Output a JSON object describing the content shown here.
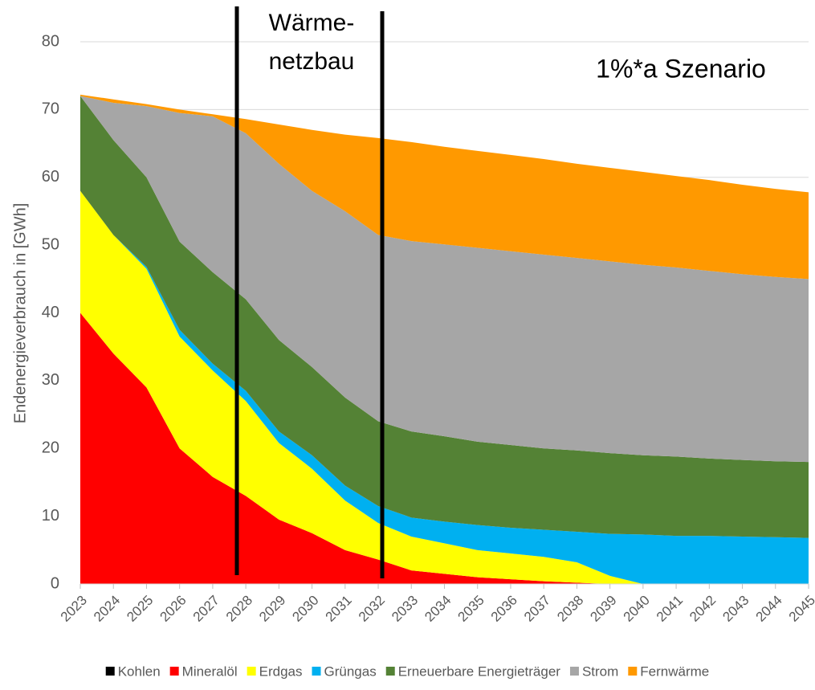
{
  "chart_data": {
    "type": "stacked_area",
    "y_label": "Endenergieverbrauch in [GWh]",
    "annotations": [
      "Wärme-",
      "netzbau",
      "1%*a Szenario"
    ],
    "categories": [
      "2023",
      "2024",
      "2025",
      "2026",
      "2027",
      "2028",
      "2029",
      "2030",
      "2031",
      "2032",
      "2033",
      "2034",
      "2035",
      "2036",
      "2037",
      "2038",
      "2039",
      "2040",
      "2041",
      "2042",
      "2043",
      "2044",
      "2045"
    ],
    "series": [
      {
        "name": "Kohlen",
        "color": "#000000",
        "values": [
          0,
          0,
          0,
          0,
          0,
          0,
          0,
          0,
          0,
          0,
          0,
          0,
          0,
          0,
          0,
          0,
          0,
          0,
          0,
          0,
          0,
          0,
          0
        ]
      },
      {
        "name": "Mineralöl",
        "color": "#ff0000",
        "values": [
          40,
          34,
          29,
          20,
          15.8,
          13,
          9.5,
          7.5,
          5,
          3.6,
          2,
          1.5,
          1,
          0.7,
          0.4,
          0.2,
          0,
          0,
          0,
          0,
          0,
          0,
          0
        ]
      },
      {
        "name": "Erdgas",
        "color": "#ffff00",
        "values": [
          18,
          17.5,
          17.5,
          16.5,
          15.7,
          14,
          11.3,
          9.5,
          7.3,
          5.4,
          5,
          4.5,
          4,
          3.8,
          3.6,
          3,
          1.2,
          0,
          0,
          0,
          0,
          0,
          0
        ]
      },
      {
        "name": "Grüngas",
        "color": "#00b0f0",
        "values": [
          0,
          0,
          0.3,
          1,
          1,
          1.5,
          1.7,
          2,
          2.2,
          2.5,
          2.8,
          3.2,
          3.7,
          3.8,
          4,
          4.5,
          6.2,
          7.3,
          7.1,
          7.1,
          7,
          6.9,
          6.8
        ]
      },
      {
        "name": "Erneuerbare Energieträger",
        "color": "#548235",
        "values": [
          14,
          14,
          13.2,
          13,
          13.5,
          13.5,
          13.5,
          13,
          13,
          12.5,
          12.7,
          12.6,
          12.3,
          12.2,
          12,
          12,
          11.9,
          11.7,
          11.7,
          11.4,
          11.3,
          11.2,
          11.2
        ]
      },
      {
        "name": "Strom",
        "color": "#a6a6a6",
        "values": [
          0,
          5.5,
          10.5,
          19,
          23,
          24.5,
          26,
          26,
          27.5,
          27.5,
          28.1,
          28.3,
          28.6,
          28.6,
          28.6,
          28.4,
          28.3,
          28.1,
          27.9,
          27.7,
          27.4,
          27.2,
          27
        ]
      },
      {
        "name": "Fernwärme",
        "color": "#ff9900",
        "values": [
          0.2,
          0.5,
          0.3,
          0.5,
          0.3,
          2.1,
          5.8,
          9,
          11.3,
          14.3,
          14.6,
          14.4,
          14.3,
          14.2,
          14.1,
          13.9,
          13.8,
          13.7,
          13.5,
          13.4,
          13.2,
          13,
          12.8
        ]
      }
    ],
    "ylim": [
      0,
      80
    ],
    "yticks": [
      0,
      10,
      20,
      30,
      40,
      50,
      60,
      70,
      80
    ],
    "grid": true
  }
}
